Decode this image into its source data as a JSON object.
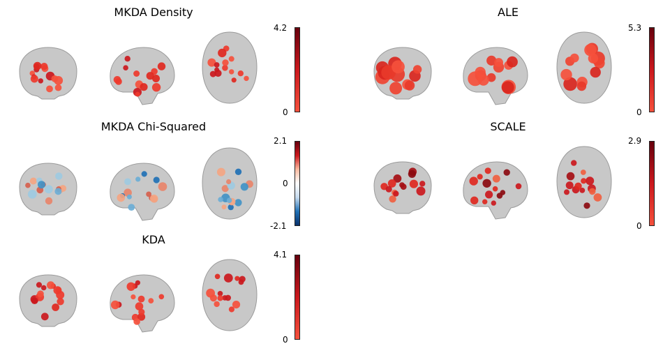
{
  "panels": [
    {
      "id": "mkda-density",
      "title": "MKDA Density",
      "colormap": "red",
      "colorbar": {
        "max_label": "4.2",
        "zero_label": "0"
      }
    },
    {
      "id": "ale",
      "title": "ALE",
      "colormap": "red",
      "colorbar": {
        "max_label": "5.3",
        "zero_label": "0"
      }
    },
    {
      "id": "mkda-chi-squared",
      "title": "MKDA Chi-Squared",
      "colormap": "diverging",
      "colorbar": {
        "max_label": "2.1",
        "mid_label": "0",
        "min_label": "-2.1"
      }
    },
    {
      "id": "scale",
      "title": "SCALE",
      "colormap": "red",
      "colorbar": {
        "max_label": "2.9",
        "zero_label": "0"
      }
    },
    {
      "id": "kda",
      "title": "KDA",
      "colormap": "red",
      "colorbar": {
        "max_label": "4.1",
        "zero_label": "0"
      }
    }
  ],
  "colors": {
    "red_low": "#f5503c",
    "red_high": "#67000d",
    "blue_high": "#08306b",
    "blue_low": "#6baed6",
    "brain_gray": "#bdbdbd"
  }
}
